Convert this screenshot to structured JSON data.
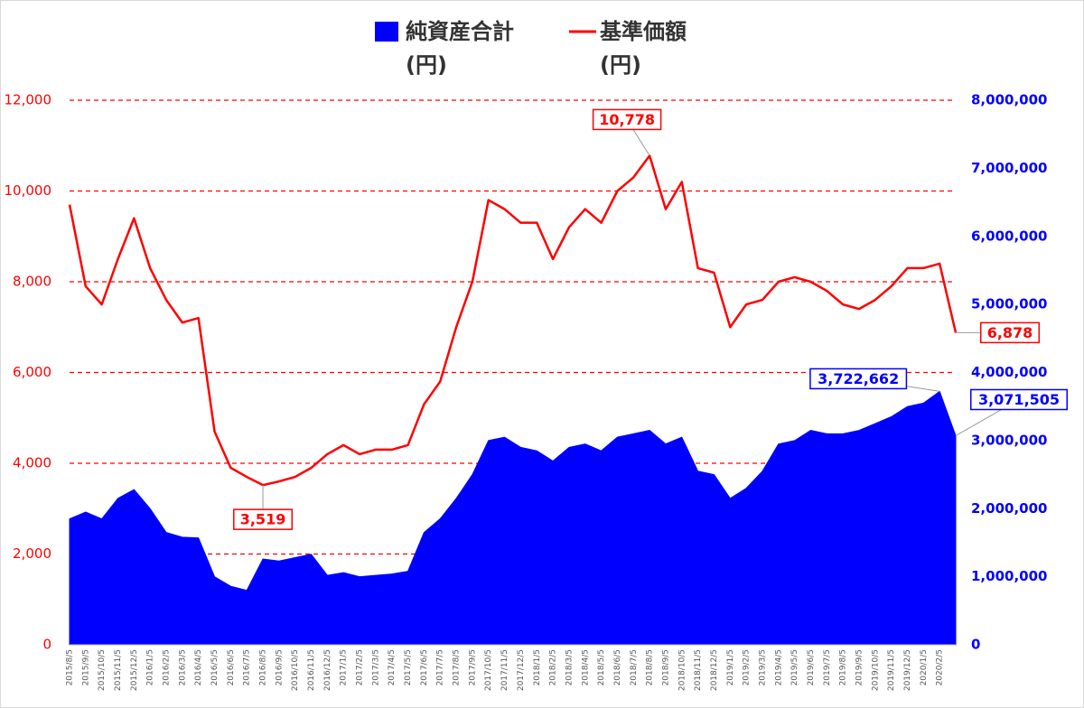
{
  "chart_data": {
    "type": "area-line",
    "categories": [
      "2015/8/5",
      "2015/9/5",
      "2015/10/5",
      "2015/11/5",
      "2015/12/5",
      "2016/1/5",
      "2016/2/5",
      "2016/3/5",
      "2016/4/5",
      "2016/5/5",
      "2016/6/5",
      "2016/7/5",
      "2016/8/5",
      "2016/9/5",
      "2016/10/5",
      "2016/11/5",
      "2016/12/5",
      "2017/1/5",
      "2017/2/5",
      "2017/3/5",
      "2017/4/5",
      "2017/5/5",
      "2017/6/5",
      "2017/7/5",
      "2017/8/5",
      "2017/9/5",
      "2017/10/5",
      "2017/11/5",
      "2017/12/5",
      "2018/1/5",
      "2018/2/5",
      "2018/3/5",
      "2018/4/5",
      "2018/5/5",
      "2018/6/5",
      "2018/7/5",
      "2018/8/5",
      "2018/9/5",
      "2018/10/5",
      "2018/11/5",
      "2018/12/5",
      "2019/1/5",
      "2019/2/5",
      "2019/3/5",
      "2019/4/5",
      "2019/5/5",
      "2019/6/5",
      "2019/7/5",
      "2019/8/5",
      "2019/9/5",
      "2019/10/5",
      "2019/11/5",
      "2019/12/5",
      "2020/1/5",
      "2020/2/5",
      null
    ],
    "series": [
      {
        "name": "純資産合計",
        "unit": "(円)",
        "color": "#0000ff",
        "axis": "y2",
        "values": [
          1850000,
          1950000,
          1850000,
          2150000,
          2280000,
          2000000,
          1650000,
          1580000,
          1570000,
          1000000,
          860000,
          800000,
          1260000,
          1230000,
          1280000,
          1330000,
          1020000,
          1060000,
          1000000,
          1020000,
          1040000,
          1080000,
          1650000,
          1850000,
          2150000,
          2500000,
          3000000,
          3050000,
          2900000,
          2850000,
          2700000,
          2900000,
          2950000,
          2850000,
          3050000,
          3100000,
          3150000,
          2950000,
          3050000,
          2550000,
          2500000,
          2150000,
          2300000,
          2550000,
          2950000,
          3000000,
          3150000,
          3100000,
          3100000,
          3150000,
          3250000,
          3350000,
          3500000,
          3550000,
          3722662,
          3071505
        ],
        "value_labels": [
          null,
          null,
          null,
          null,
          null,
          null,
          null,
          null,
          null,
          null,
          null,
          null,
          null,
          null,
          null,
          null,
          null,
          null,
          null,
          null,
          null,
          null,
          null,
          null,
          null,
          null,
          null,
          null,
          null,
          null,
          null,
          null,
          null,
          null,
          null,
          null,
          null,
          null,
          null,
          null,
          null,
          null,
          null,
          null,
          null,
          null,
          null,
          null,
          null,
          null,
          null,
          null,
          null,
          null,
          "3,722,662",
          "3,071,505"
        ]
      },
      {
        "name": "基準価額",
        "unit": "(円)",
        "color": "#ff0000",
        "axis": "y",
        "values": [
          9700,
          7900,
          7500,
          8500,
          9400,
          8300,
          7600,
          7100,
          7200,
          4700,
          3900,
          3700,
          3519,
          3600,
          3700,
          3900,
          4200,
          4400,
          4200,
          4300,
          4300,
          4400,
          5300,
          5800,
          7000,
          8000,
          9800,
          9600,
          9300,
          9300,
          8500,
          9200,
          9600,
          9300,
          10000,
          10300,
          10778,
          9600,
          10200,
          8300,
          8200,
          7000,
          7500,
          7600,
          8000,
          8100,
          8000,
          7800,
          7500,
          7400,
          7600,
          7900,
          8300,
          8300,
          8400,
          6878
        ],
        "value_labels": [
          null,
          null,
          null,
          null,
          null,
          null,
          null,
          null,
          null,
          null,
          null,
          null,
          "3,519",
          null,
          null,
          null,
          null,
          null,
          null,
          null,
          null,
          null,
          null,
          null,
          null,
          null,
          null,
          null,
          null,
          null,
          null,
          null,
          null,
          null,
          null,
          null,
          "10,778",
          null,
          null,
          null,
          null,
          null,
          null,
          null,
          null,
          null,
          null,
          null,
          null,
          null,
          null,
          null,
          null,
          null,
          null,
          "6,878"
        ]
      }
    ],
    "ylim": [
      0,
      12000
    ],
    "yticks": [
      0,
      {
        "value": 2000,
        "label": "2,000"
      },
      {
        "value": 4000,
        "label": "4,000"
      },
      {
        "value": 6000,
        "label": "6,000"
      },
      {
        "value": 8000,
        "label": "8,000"
      },
      {
        "value": 10000,
        "label": "10,000"
      },
      {
        "value": 12000,
        "label": "12,000"
      }
    ],
    "y2lim": [
      0,
      8000000
    ],
    "y2ticks": [
      0,
      {
        "value": 1000000,
        "label": "1,000,000"
      },
      {
        "value": 2000000,
        "label": "2,000,000"
      },
      {
        "value": 3000000,
        "label": "3,000,000"
      },
      {
        "value": 4000000,
        "label": "4,000,000"
      },
      {
        "value": 5000000,
        "label": "5,000,000"
      },
      {
        "value": 6000000,
        "label": "6,000,000"
      },
      {
        "value": 7000000,
        "label": "7,000,000"
      },
      {
        "value": 8000000,
        "label": "8,000,000"
      }
    ],
    "grid": true,
    "grid_color": "#ff0000"
  }
}
